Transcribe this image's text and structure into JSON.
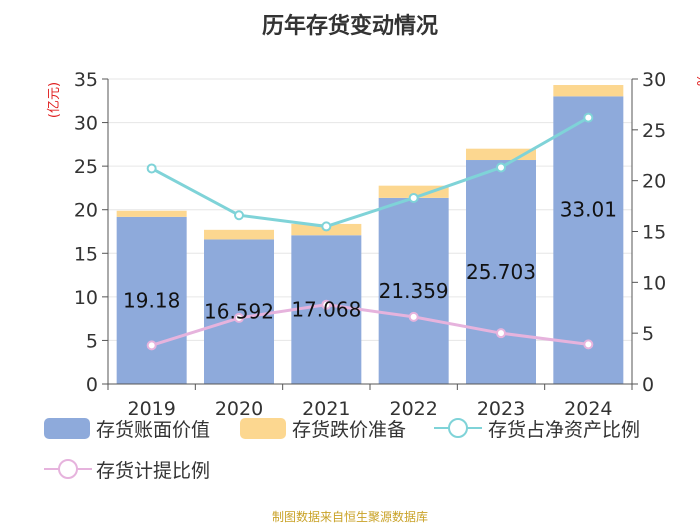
{
  "chart_data": {
    "type": "bar",
    "title": "历年存货变动情况",
    "categories": [
      "2019",
      "2020",
      "2021",
      "2022",
      "2023",
      "2024"
    ],
    "bar_series": [
      {
        "name": "存货账面价值",
        "values": [
          19.18,
          16.592,
          17.068,
          21.359,
          25.703,
          33.01
        ],
        "color": "#8eaadb"
      },
      {
        "name": "存货跌价准备",
        "values": [
          0.7,
          1.1,
          1.3,
          1.4,
          1.3,
          1.3
        ],
        "color": "#fcd790"
      }
    ],
    "line_series": [
      {
        "name": "存货占净资产比例",
        "values": [
          21.2,
          16.6,
          15.5,
          18.3,
          21.3,
          26.2
        ],
        "color": "#7fd3d8"
      },
      {
        "name": "存货计提比例",
        "values": [
          3.8,
          6.5,
          7.8,
          6.6,
          5.0,
          3.9
        ],
        "color": "#e6b3dd"
      }
    ],
    "bar_labels": [
      "19.18",
      "16.592",
      "17.068",
      "21.359",
      "25.703",
      "33.01"
    ],
    "y_left": {
      "label": "(亿元)",
      "min": 0,
      "max": 35,
      "ticks": [
        0,
        5,
        10,
        15,
        20,
        25,
        30,
        35
      ]
    },
    "y_right": {
      "label": "%",
      "min": 0,
      "max": 30,
      "ticks": [
        0,
        5,
        10,
        15,
        20,
        25,
        30
      ]
    },
    "legend_position": "bottom"
  },
  "source": "制图数据来自恒生聚源数据库"
}
